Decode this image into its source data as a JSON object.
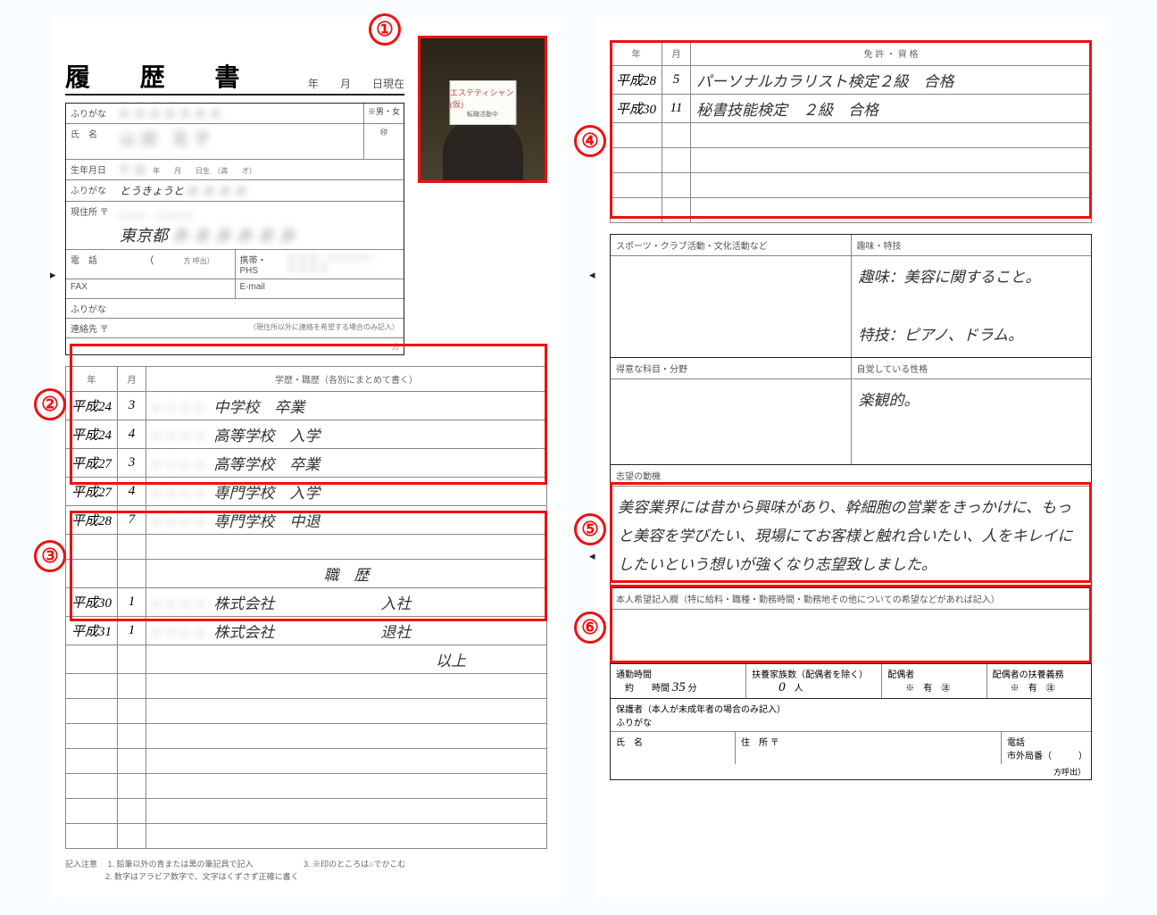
{
  "annotations": {
    "color": "#f01010",
    "markers": [
      "①",
      "②",
      "③",
      "④",
      "⑤",
      "⑥"
    ]
  },
  "title": "履 歴 書",
  "date_labels": {
    "year": "年",
    "month": "月",
    "day_current": "日現在"
  },
  "labels": {
    "furigana": "ふりがな",
    "name": "氏　名",
    "birth": "生年月日",
    "address": "現住所 〒",
    "tel": "電　話",
    "fax": "FAX",
    "contact": "連絡先 〒",
    "mobile": "携帯・PHS",
    "email": "E-mail",
    "contact_note": "（現住所以外に連絡を希望する場合のみ記入）",
    "gender_box": "※男・女",
    "seal": "㊞",
    "birth_suffix": "年　　月　　日生　（満　　才）",
    "tel_suffix": "方 呼出）",
    "address_suffix": "方"
  },
  "handwritten": {
    "furigana_addr": "とうきょうと",
    "city": "東京都"
  },
  "photo_sign": {
    "line1": "エステティシャン(仮)",
    "line2": "転職活動中"
  },
  "history_table": {
    "headers": {
      "year": "年",
      "month": "月",
      "detail": "学歴・職歴（各別にまとめて書く）"
    },
    "education": [
      {
        "y": "平成24",
        "m": "3",
        "text": "中学校　卒業"
      },
      {
        "y": "平成24",
        "m": "4",
        "text": "高等学校　入学"
      },
      {
        "y": "平成27",
        "m": "3",
        "text": "高等学校　卒業"
      },
      {
        "y": "平成27",
        "m": "4",
        "text": "専門学校　入学"
      },
      {
        "y": "平成28",
        "m": "7",
        "text": "専門学校　中退"
      }
    ],
    "work_header": "職　歴",
    "work": [
      {
        "y": "平成30",
        "m": "1",
        "text": "株式会社　　　　　　　入社"
      },
      {
        "y": "平成31",
        "m": "1",
        "text": "株式会社　　　　　　　退社"
      }
    ],
    "end": "以上",
    "blank_rows_after": 7
  },
  "license_table": {
    "headers": {
      "year": "年",
      "month": "月",
      "detail": "免 許 ・ 資 格"
    },
    "rows": [
      {
        "y": "平成28",
        "m": "5",
        "text": "パーソナルカラリスト検定２級　合格"
      },
      {
        "y": "平成30",
        "m": "11",
        "text": "秘書技能検定　２級　合格"
      }
    ],
    "blank_rows_after": 4
  },
  "sections": {
    "sports": {
      "label": "スポーツ・クラブ活動・文化活動など",
      "text": ""
    },
    "hobby": {
      "label": "趣味・特技",
      "text": "趣味：美容に関すること。\n\n特技：ピアノ、ドラム。"
    },
    "subject": {
      "label": "得意な科目・分野",
      "text": ""
    },
    "character": {
      "label": "自覚している性格",
      "text": "楽観的。"
    },
    "motive": {
      "label": "志望の動機",
      "text": "美容業界には昔から興味があり、幹細胞の営業をきっかけに、もっと美容を学びたい、現場にてお客様と触れ合いたい、人をキレイにしたいという想いが強くなり志望致しました。"
    },
    "wish": {
      "label": "本人希望記入欄（特に給料・職種・勤務時間・勤務地その他についての希望などがあれば記入）",
      "text": ""
    }
  },
  "commute": {
    "label": "通勤時間",
    "approx": "約",
    "hour_label": "時間",
    "min_val": "35",
    "min_label": "分",
    "dependents_label": "扶養家族数（配偶者を除く）",
    "dependents_val": "0",
    "dependents_unit": "人",
    "spouse_label": "配偶者",
    "spouse_opts": "※　有　㊟",
    "spouse_duty_label": "配偶者の扶養義務",
    "spouse_duty_opts": "※　有　㊟"
  },
  "guardian": {
    "label": "保護者（本人が未成年者の場合のみ記入）",
    "furigana": "ふりがな",
    "name": "氏　名",
    "addr": "住　所 〒",
    "tel": "電話",
    "tel2": "市外局番（　　　）",
    "suffix": "方呼出）"
  },
  "notes": {
    "title": "記入注意",
    "n1": "1. 鉛筆以外の青または黒の筆記具で記入",
    "n2": "2. 数字はアラビア数字で、文字はくずさず正確に書く",
    "n3": "3. ※印のところは○でかこむ"
  }
}
